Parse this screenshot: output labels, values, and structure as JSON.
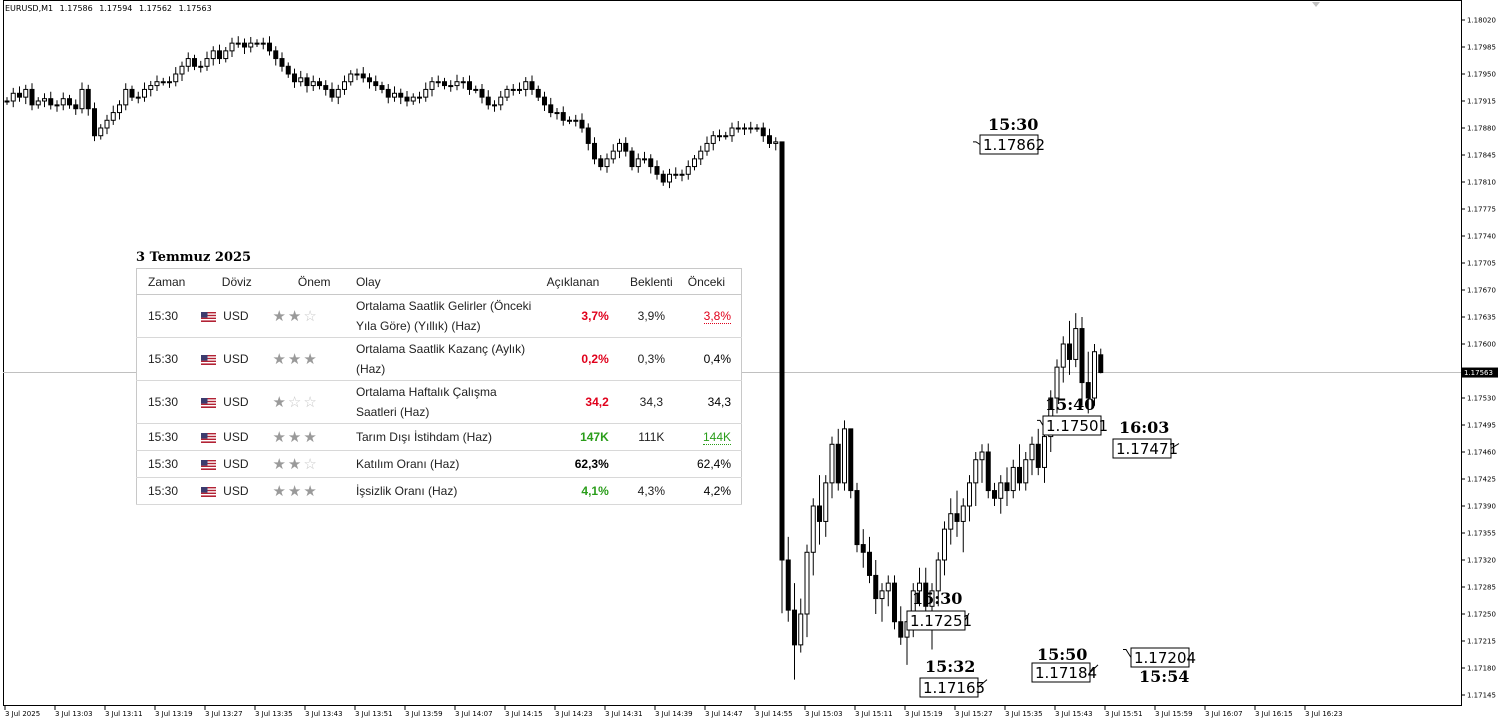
{
  "header": {
    "symbol": "EURUSD,M1",
    "open": "1.17586",
    "high": "1.17594",
    "low": "1.17562",
    "close": "1.17563"
  },
  "chart_data": {
    "type": "candlestick",
    "title": "",
    "ylim": [
      1.1712,
      1.1804
    ],
    "yticks": [
      "1.18020",
      "1.17985",
      "1.17950",
      "1.17915",
      "1.17880",
      "1.17845",
      "1.17810",
      "1.17775",
      "1.17740",
      "1.17705",
      "1.17670",
      "1.17635",
      "1.17600",
      "1.17565",
      "1.17530",
      "1.17495",
      "1.17460",
      "1.17425",
      "1.17390",
      "1.17355",
      "1.17320",
      "1.17285",
      "1.17250",
      "1.17215",
      "1.17180",
      "1.17145"
    ],
    "xticks": [
      "3 Jul 2025",
      "3 Jul 13:03",
      "3 Jul 13:11",
      "3 Jul 13:19",
      "3 Jul 13:27",
      "3 Jul 13:35",
      "3 Jul 13:43",
      "3 Jul 13:51",
      "3 Jul 13:59",
      "3 Jul 14:07",
      "3 Jul 14:15",
      "3 Jul 14:23",
      "3 Jul 14:31",
      "3 Jul 14:39",
      "3 Jul 14:47",
      "3 Jul 14:55",
      "3 Jul 15:03",
      "3 Jul 15:11",
      "3 Jul 15:19",
      "3 Jul 15:27",
      "3 Jul 15:35",
      "3 Jul 15:43",
      "3 Jul 15:51",
      "3 Jul 15:59",
      "3 Jul 16:07",
      "3 Jul 16:15",
      "3 Jul 16:23"
    ],
    "current_price": "1.17563",
    "grid": false,
    "series": [
      {
        "close_path": [
          1.17915,
          1.17925,
          1.1792,
          1.1793,
          1.1791,
          1.17915,
          1.17918,
          1.1791,
          1.1791,
          1.17918,
          1.1791,
          1.17905,
          1.1793,
          1.17905,
          1.1787,
          1.1788,
          1.1789,
          1.179,
          1.1791,
          1.1793,
          1.1792,
          1.1792,
          1.1793,
          1.17935,
          1.1794,
          1.1794,
          1.1794,
          1.1795,
          1.1796,
          1.1797,
          1.1796,
          1.1796,
          1.1797,
          1.1798,
          1.1797,
          1.1798,
          1.1799,
          1.1799,
          1.17985,
          1.1799,
          1.1799,
          1.1799,
          1.1798,
          1.1797,
          1.1796,
          1.1795,
          1.1794,
          1.17945,
          1.17935,
          1.1794,
          1.17935,
          1.1793,
          1.1792,
          1.1793,
          1.1794,
          1.1795,
          1.1795,
          1.17945,
          1.1794,
          1.17935,
          1.1793,
          1.1792,
          1.17925,
          1.1792,
          1.17915,
          1.1792,
          1.1792,
          1.1793,
          1.1794,
          1.1794,
          1.17935,
          1.17935,
          1.1794,
          1.1794,
          1.1793,
          1.1793,
          1.1792,
          1.1791,
          1.1791,
          1.1792,
          1.1793,
          1.1793,
          1.1793,
          1.1794,
          1.1793,
          1.1792,
          1.1791,
          1.179,
          1.179,
          1.1789,
          1.1789,
          1.1789,
          1.1788,
          1.1786,
          1.1784,
          1.1783,
          1.1784,
          1.1785,
          1.1786,
          1.1785,
          1.1783,
          1.1784,
          1.1784,
          1.1783,
          1.1782,
          1.1781,
          1.1782,
          1.1782,
          1.1782,
          1.1783,
          1.1784,
          1.1785,
          1.1786,
          1.1787,
          1.1787,
          1.1787,
          1.1788,
          1.1788,
          1.1788,
          1.1788,
          1.1788,
          1.1787,
          1.1786,
          1.17862
        ],
        "event_candles": [
          {
            "time": "15:30",
            "open": 1.17862,
            "high": 1.17862,
            "low": 1.17251,
            "close": 1.1732
          },
          {
            "time": "15:31",
            "open": 1.1732,
            "high": 1.1735,
            "low": 1.1724,
            "close": 1.17255
          },
          {
            "time": "15:32",
            "open": 1.17255,
            "high": 1.1729,
            "low": 1.17165,
            "close": 1.1721
          },
          {
            "time": "15:33",
            "open": 1.1721,
            "high": 1.1727,
            "low": 1.172,
            "close": 1.1725
          },
          {
            "time": "15:34",
            "open": 1.1725,
            "high": 1.1734,
            "low": 1.1722,
            "close": 1.1733
          },
          {
            "time": "15:35",
            "open": 1.1733,
            "high": 1.174,
            "low": 1.173,
            "close": 1.1739
          },
          {
            "time": "15:36",
            "open": 1.1739,
            "high": 1.1743,
            "low": 1.1734,
            "close": 1.1737
          },
          {
            "time": "15:37",
            "open": 1.1737,
            "high": 1.1743,
            "low": 1.1735,
            "close": 1.1742
          },
          {
            "time": "15:38",
            "open": 1.1742,
            "high": 1.1748,
            "low": 1.174,
            "close": 1.1747
          },
          {
            "time": "15:39",
            "open": 1.1747,
            "high": 1.1749,
            "low": 1.1741,
            "close": 1.1742
          },
          {
            "time": "15:40",
            "open": 1.1742,
            "high": 1.17501,
            "low": 1.1741,
            "close": 1.1749
          },
          {
            "time": "15:41",
            "open": 1.1749,
            "high": 1.1749,
            "low": 1.174,
            "close": 1.1741
          },
          {
            "time": "15:42",
            "open": 1.1741,
            "high": 1.1742,
            "low": 1.1733,
            "close": 1.1734
          },
          {
            "time": "15:43",
            "open": 1.1734,
            "high": 1.1736,
            "low": 1.1731,
            "close": 1.1733
          },
          {
            "time": "15:44",
            "open": 1.1733,
            "high": 1.1735,
            "low": 1.1729,
            "close": 1.173
          },
          {
            "time": "15:45",
            "open": 1.173,
            "high": 1.1732,
            "low": 1.1725,
            "close": 1.1727
          },
          {
            "time": "15:46",
            "open": 1.1727,
            "high": 1.1729,
            "low": 1.1724,
            "close": 1.1728
          },
          {
            "time": "15:47",
            "open": 1.1728,
            "high": 1.173,
            "low": 1.1726,
            "close": 1.1729
          },
          {
            "time": "15:48",
            "open": 1.1729,
            "high": 1.173,
            "low": 1.1723,
            "close": 1.1724
          },
          {
            "time": "15:49",
            "open": 1.1724,
            "high": 1.1726,
            "low": 1.1721,
            "close": 1.1722
          },
          {
            "time": "15:50",
            "open": 1.1722,
            "high": 1.1725,
            "low": 1.17184,
            "close": 1.1724
          },
          {
            "time": "15:51",
            "open": 1.1724,
            "high": 1.1729,
            "low": 1.1722,
            "close": 1.1728
          },
          {
            "time": "15:52",
            "open": 1.1728,
            "high": 1.1731,
            "low": 1.1726,
            "close": 1.1729
          },
          {
            "time": "15:53",
            "open": 1.1729,
            "high": 1.1731,
            "low": 1.1725,
            "close": 1.1726
          },
          {
            "time": "15:54",
            "open": 1.1726,
            "high": 1.1729,
            "low": 1.17204,
            "close": 1.1728
          },
          {
            "time": "15:55",
            "open": 1.1728,
            "high": 1.1733,
            "low": 1.1726,
            "close": 1.1732
          },
          {
            "time": "15:56",
            "open": 1.1732,
            "high": 1.1737,
            "low": 1.173,
            "close": 1.1736
          },
          {
            "time": "15:57",
            "open": 1.1736,
            "high": 1.174,
            "low": 1.1734,
            "close": 1.1738
          },
          {
            "time": "15:58",
            "open": 1.1738,
            "high": 1.1741,
            "low": 1.1735,
            "close": 1.1737
          },
          {
            "time": "15:59",
            "open": 1.1737,
            "high": 1.174,
            "low": 1.1733,
            "close": 1.1739
          },
          {
            "time": "16:00",
            "open": 1.1739,
            "high": 1.1743,
            "low": 1.1737,
            "close": 1.1742
          },
          {
            "time": "16:01",
            "open": 1.1742,
            "high": 1.1746,
            "low": 1.1739,
            "close": 1.1745
          },
          {
            "time": "16:02",
            "open": 1.1745,
            "high": 1.1747,
            "low": 1.1742,
            "close": 1.1746
          },
          {
            "time": "16:03",
            "open": 1.1746,
            "high": 1.17471,
            "low": 1.174,
            "close": 1.1741
          },
          {
            "time": "16:04",
            "open": 1.1741,
            "high": 1.1742,
            "low": 1.1739,
            "close": 1.174
          },
          {
            "time": "16:05",
            "open": 1.174,
            "high": 1.1743,
            "low": 1.1738,
            "close": 1.1742
          },
          {
            "time": "16:06",
            "open": 1.1742,
            "high": 1.1744,
            "low": 1.1739,
            "close": 1.1741
          },
          {
            "time": "16:07",
            "open": 1.1741,
            "high": 1.1745,
            "low": 1.174,
            "close": 1.1744
          },
          {
            "time": "16:08",
            "open": 1.1744,
            "high": 1.1747,
            "low": 1.1741,
            "close": 1.1742
          },
          {
            "time": "16:09",
            "open": 1.1742,
            "high": 1.1746,
            "low": 1.1741,
            "close": 1.1745
          },
          {
            "time": "16:10",
            "open": 1.1745,
            "high": 1.1748,
            "low": 1.1743,
            "close": 1.1747
          },
          {
            "time": "16:11",
            "open": 1.1747,
            "high": 1.1749,
            "low": 1.1743,
            "close": 1.1744
          },
          {
            "time": "16:12",
            "open": 1.1744,
            "high": 1.1749,
            "low": 1.1742,
            "close": 1.1748
          },
          {
            "time": "16:13",
            "open": 1.1748,
            "high": 1.1754,
            "low": 1.1746,
            "close": 1.1753
          },
          {
            "time": "16:14",
            "open": 1.1753,
            "high": 1.1758,
            "low": 1.1751,
            "close": 1.1757
          },
          {
            "time": "16:15",
            "open": 1.1757,
            "high": 1.1761,
            "low": 1.1755,
            "close": 1.176
          },
          {
            "time": "16:16",
            "open": 1.176,
            "high": 1.1763,
            "low": 1.1756,
            "close": 1.1758
          },
          {
            "time": "16:17",
            "open": 1.1758,
            "high": 1.1764,
            "low": 1.1757,
            "close": 1.1762
          },
          {
            "time": "16:18",
            "open": 1.1762,
            "high": 1.17635,
            "low": 1.1752,
            "close": 1.1755
          },
          {
            "time": "16:19",
            "open": 1.1755,
            "high": 1.1759,
            "low": 1.1751,
            "close": 1.1753
          },
          {
            "time": "16:20",
            "open": 1.1753,
            "high": 1.176,
            "low": 1.1752,
            "close": 1.1759
          },
          {
            "time": "16:21",
            "open": 1.17586,
            "high": 1.17594,
            "low": 1.17562,
            "close": 1.17563
          }
        ]
      }
    ],
    "annotations": [
      {
        "time": "15:30",
        "price": "1.17862"
      },
      {
        "time": "15:30",
        "price": "1.17251"
      },
      {
        "time": "15:32",
        "price": "1.17165"
      },
      {
        "time": "15:40",
        "price": "1.17501"
      },
      {
        "time": "15:50",
        "price": "1.17184"
      },
      {
        "time": "16:03",
        "price": "1.17471"
      },
      {
        "time": "15:54",
        "price": "1.17204"
      }
    ]
  },
  "events_table": {
    "date": "3 Temmuz 2025",
    "headers": [
      "Zaman",
      "Döviz",
      "Önem",
      "Olay",
      "Açıklanan",
      "Beklenti",
      "Önceki"
    ],
    "rows": [
      {
        "time": "15:30",
        "currency": "USD",
        "importance": 2,
        "event": "Ortalama Saatlik Gelirler (Önceki Yıla Göre) (Yıllık) (Haz)",
        "actual": "3,7%",
        "actual_color": "#e0001b",
        "forecast": "3,9%",
        "previous": "3,8%",
        "previous_color": "#e0001b",
        "previous_revised": true
      },
      {
        "time": "15:30",
        "currency": "USD",
        "importance": 3,
        "event": "Ortalama Saatlik Kazanç (Aylık) (Haz)",
        "actual": "0,2%",
        "actual_color": "#e0001b",
        "forecast": "0,3%",
        "previous": "0,4%",
        "previous_color": "#000000",
        "previous_revised": false
      },
      {
        "time": "15:30",
        "currency": "USD",
        "importance": 1,
        "event": "Ortalama Haftalık Çalışma Saatleri (Haz)",
        "actual": "34,2",
        "actual_color": "#e0001b",
        "forecast": "34,3",
        "previous": "34,3",
        "previous_color": "#000000",
        "previous_revised": false
      },
      {
        "time": "15:30",
        "currency": "USD",
        "importance": 3,
        "event": "Tarım Dışı İstihdam (Haz)",
        "actual": "147K",
        "actual_color": "#2a9d1a",
        "forecast": "111K",
        "previous": "144K",
        "previous_color": "#2a9d1a",
        "previous_revised": true
      },
      {
        "time": "15:30",
        "currency": "USD",
        "importance": 2,
        "event": "Katılım Oranı (Haz)",
        "actual": "62,3%",
        "actual_color": "#000000",
        "forecast": "",
        "previous": "62,4%",
        "previous_color": "#000000",
        "previous_revised": false
      },
      {
        "time": "15:30",
        "currency": "USD",
        "importance": 3,
        "event": "İşsizlik Oranı (Haz)",
        "actual": "4,1%",
        "actual_color": "#2a9d1a",
        "forecast": "4,3%",
        "previous": "4,2%",
        "previous_color": "#000000",
        "previous_revised": false
      }
    ]
  }
}
